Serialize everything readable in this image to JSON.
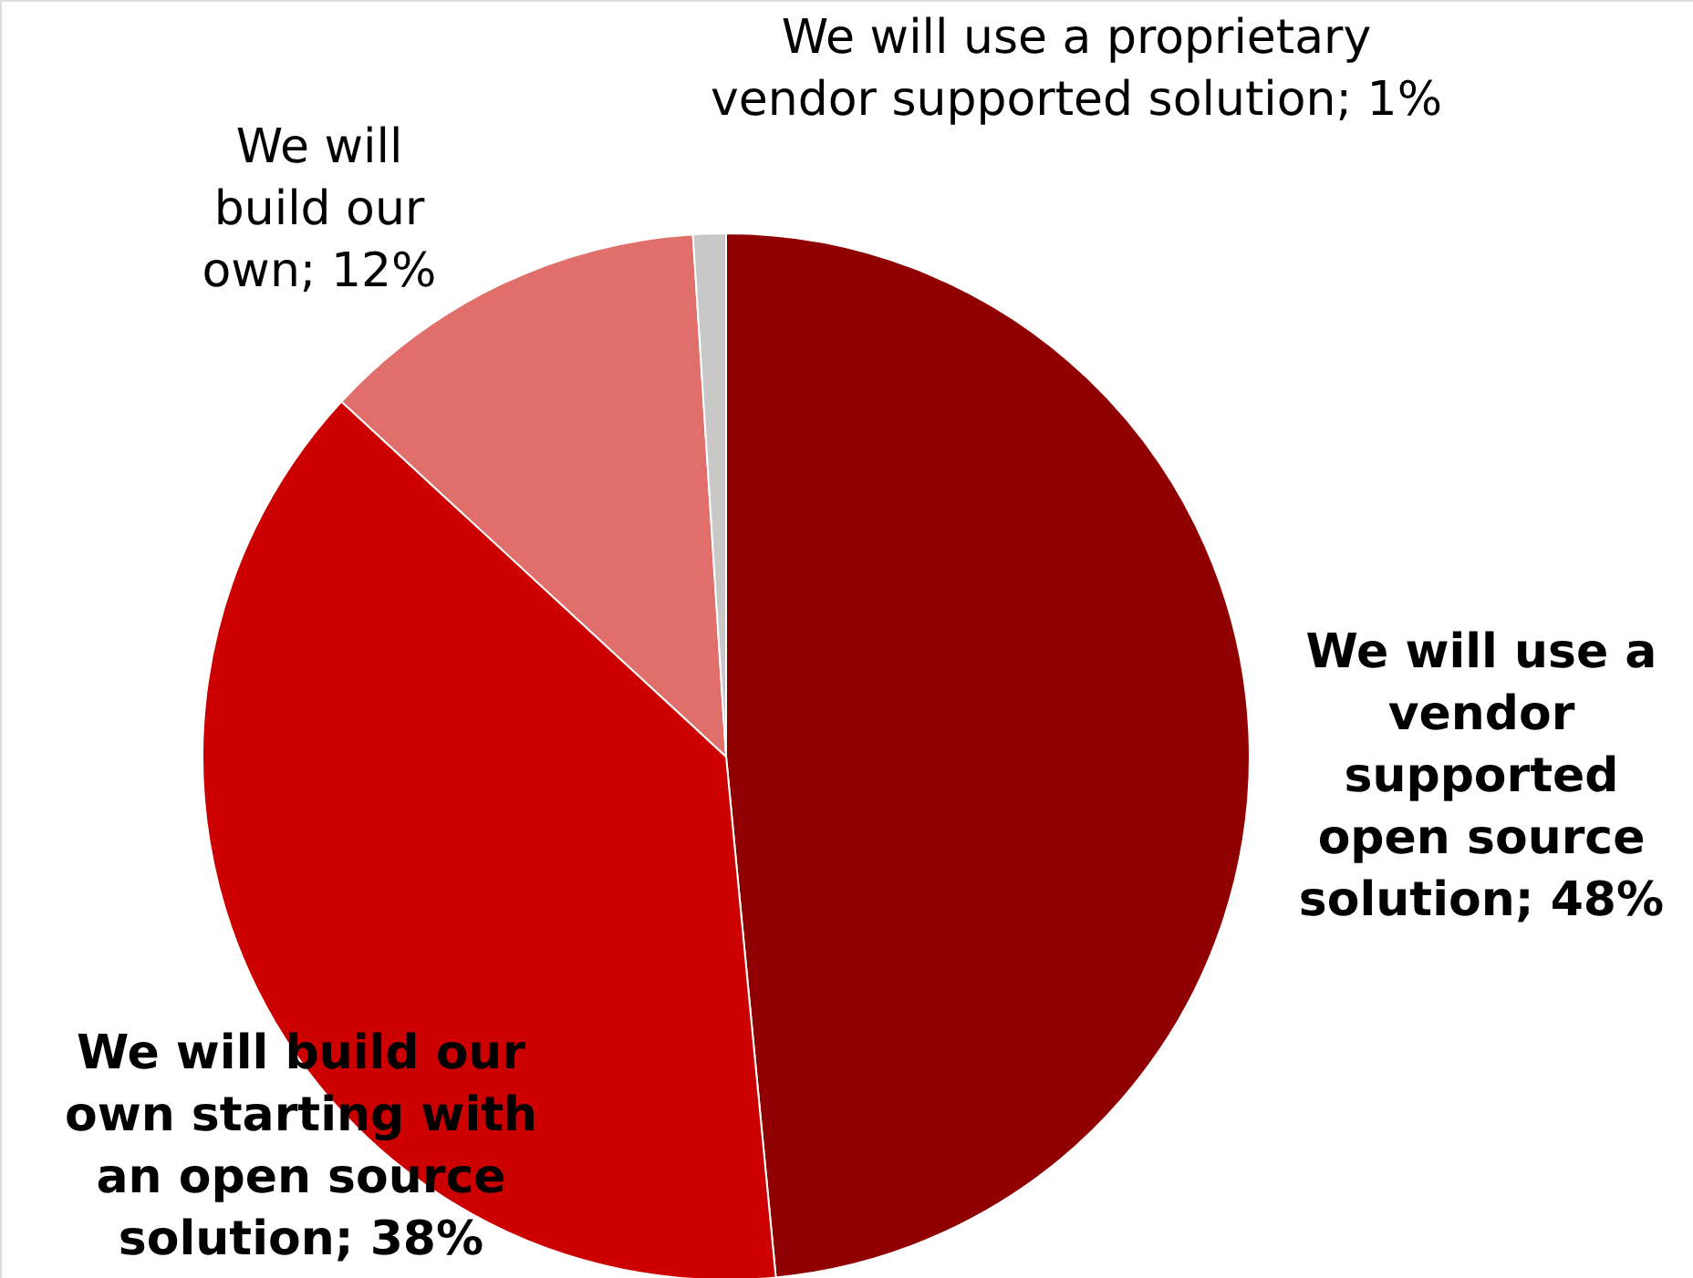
{
  "chart_data": {
    "type": "pie",
    "categories": [
      "We will use a vendor supported open source solution",
      "We will build our own starting with an open source solution",
      "We will build our own",
      "We will use a proprietary vendor supported solution"
    ],
    "values": [
      48,
      38,
      12,
      1
    ],
    "value_labels": [
      "48%",
      "38%",
      "12%",
      "1%"
    ],
    "colors": [
      "#900000",
      "#cc0000",
      "#e06e6b",
      "#c8c8c8"
    ]
  }
}
